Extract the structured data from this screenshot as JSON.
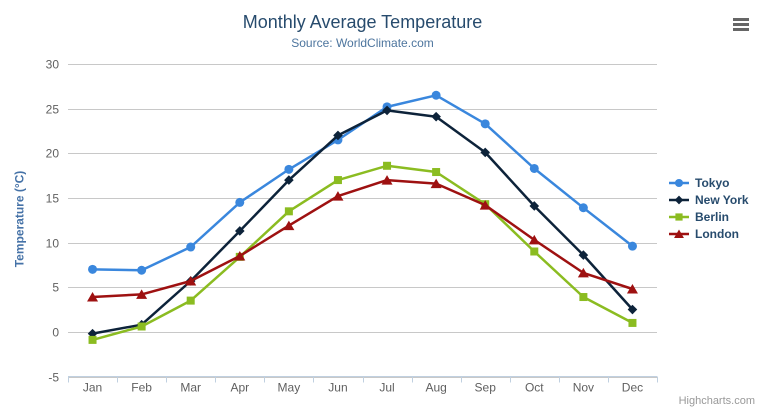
{
  "chart": {
    "title": "Monthly Average Temperature",
    "subtitle": "Source: WorldClimate.com",
    "credits": "Highcharts.com",
    "context_menu_icon": "hamburger-icon"
  },
  "colors": {
    "background": "#ffffff",
    "title": "#274b6d",
    "subtitle": "#4d759e",
    "yaxis_title": "#4572a7",
    "axis_labels": "#606060",
    "gridline": "#c8c8c8",
    "axis_line": "#c0d0e0",
    "legend_text": "#274b6d",
    "credits": "#999999",
    "menu_icon": "#666666"
  },
  "chart_data": {
    "type": "line",
    "title": "Monthly Average Temperature",
    "subtitle": "Source: WorldClimate.com",
    "xlabel": "",
    "ylabel": "Temperature (°C)",
    "categories": [
      "Jan",
      "Feb",
      "Mar",
      "Apr",
      "May",
      "Jun",
      "Jul",
      "Aug",
      "Sep",
      "Oct",
      "Nov",
      "Dec"
    ],
    "ylim": [
      -5,
      30
    ],
    "ytick_step": 5,
    "grid": true,
    "legend_position": "right",
    "series": [
      {
        "name": "Tokyo",
        "color": "#3a87dd",
        "marker": "circle",
        "values": [
          7.0,
          6.9,
          9.5,
          14.5,
          18.2,
          21.5,
          25.2,
          26.5,
          23.3,
          18.3,
          13.9,
          9.6
        ]
      },
      {
        "name": "New York",
        "color": "#0d233a",
        "marker": "diamond",
        "values": [
          -0.2,
          0.8,
          5.7,
          11.3,
          17.0,
          22.0,
          24.8,
          24.1,
          20.1,
          14.1,
          8.6,
          2.5
        ]
      },
      {
        "name": "Berlin",
        "color": "#8bbc21",
        "marker": "square",
        "values": [
          -0.9,
          0.6,
          3.5,
          8.4,
          13.5,
          17.0,
          18.6,
          17.9,
          14.3,
          9.0,
          3.9,
          1.0
        ]
      },
      {
        "name": "London",
        "color": "#9e1111",
        "marker": "triangle-up",
        "values": [
          3.9,
          4.2,
          5.7,
          8.5,
          11.9,
          15.2,
          17.0,
          16.6,
          14.2,
          10.3,
          6.6,
          4.8
        ]
      }
    ]
  }
}
